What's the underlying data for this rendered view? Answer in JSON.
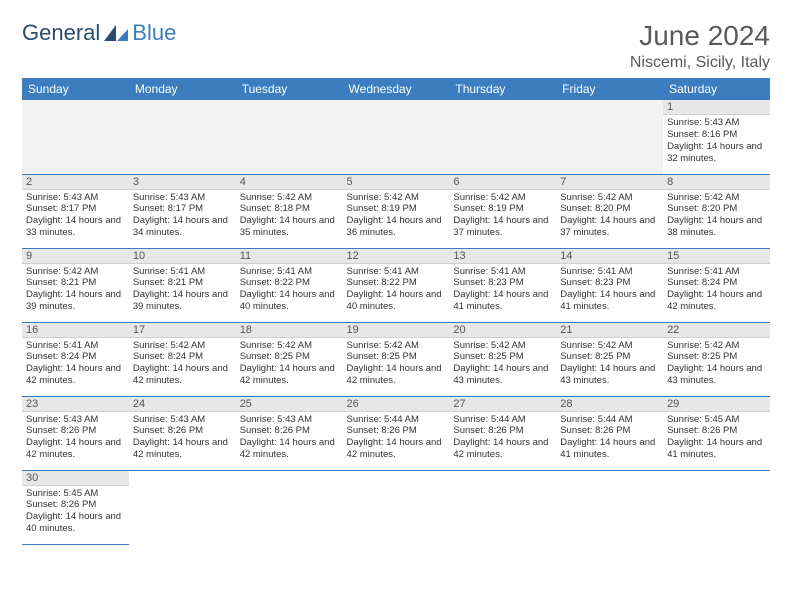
{
  "brand": {
    "word1": "General",
    "word2": "Blue"
  },
  "title": "June 2024",
  "location": "Niscemi, Sicily, Italy",
  "colors": {
    "header_bg": "#3b7dbf",
    "header_text": "#ffffff",
    "daynum_bg": "#e7e7e7",
    "cell_border": "#3b7dbf",
    "text": "#333333",
    "title_text": "#5a5a5a"
  },
  "weekdays": [
    "Sunday",
    "Monday",
    "Tuesday",
    "Wednesday",
    "Thursday",
    "Friday",
    "Saturday"
  ],
  "leading_blanks": 6,
  "days": [
    {
      "n": 1,
      "sunrise": "5:43 AM",
      "sunset": "8:16 PM",
      "daylight": "14 hours and 32 minutes."
    },
    {
      "n": 2,
      "sunrise": "5:43 AM",
      "sunset": "8:17 PM",
      "daylight": "14 hours and 33 minutes."
    },
    {
      "n": 3,
      "sunrise": "5:43 AM",
      "sunset": "8:17 PM",
      "daylight": "14 hours and 34 minutes."
    },
    {
      "n": 4,
      "sunrise": "5:42 AM",
      "sunset": "8:18 PM",
      "daylight": "14 hours and 35 minutes."
    },
    {
      "n": 5,
      "sunrise": "5:42 AM",
      "sunset": "8:19 PM",
      "daylight": "14 hours and 36 minutes."
    },
    {
      "n": 6,
      "sunrise": "5:42 AM",
      "sunset": "8:19 PM",
      "daylight": "14 hours and 37 minutes."
    },
    {
      "n": 7,
      "sunrise": "5:42 AM",
      "sunset": "8:20 PM",
      "daylight": "14 hours and 37 minutes."
    },
    {
      "n": 8,
      "sunrise": "5:42 AM",
      "sunset": "8:20 PM",
      "daylight": "14 hours and 38 minutes."
    },
    {
      "n": 9,
      "sunrise": "5:42 AM",
      "sunset": "8:21 PM",
      "daylight": "14 hours and 39 minutes."
    },
    {
      "n": 10,
      "sunrise": "5:41 AM",
      "sunset": "8:21 PM",
      "daylight": "14 hours and 39 minutes."
    },
    {
      "n": 11,
      "sunrise": "5:41 AM",
      "sunset": "8:22 PM",
      "daylight": "14 hours and 40 minutes."
    },
    {
      "n": 12,
      "sunrise": "5:41 AM",
      "sunset": "8:22 PM",
      "daylight": "14 hours and 40 minutes."
    },
    {
      "n": 13,
      "sunrise": "5:41 AM",
      "sunset": "8:23 PM",
      "daylight": "14 hours and 41 minutes."
    },
    {
      "n": 14,
      "sunrise": "5:41 AM",
      "sunset": "8:23 PM",
      "daylight": "14 hours and 41 minutes."
    },
    {
      "n": 15,
      "sunrise": "5:41 AM",
      "sunset": "8:24 PM",
      "daylight": "14 hours and 42 minutes."
    },
    {
      "n": 16,
      "sunrise": "5:41 AM",
      "sunset": "8:24 PM",
      "daylight": "14 hours and 42 minutes."
    },
    {
      "n": 17,
      "sunrise": "5:42 AM",
      "sunset": "8:24 PM",
      "daylight": "14 hours and 42 minutes."
    },
    {
      "n": 18,
      "sunrise": "5:42 AM",
      "sunset": "8:25 PM",
      "daylight": "14 hours and 42 minutes."
    },
    {
      "n": 19,
      "sunrise": "5:42 AM",
      "sunset": "8:25 PM",
      "daylight": "14 hours and 42 minutes."
    },
    {
      "n": 20,
      "sunrise": "5:42 AM",
      "sunset": "8:25 PM",
      "daylight": "14 hours and 43 minutes."
    },
    {
      "n": 21,
      "sunrise": "5:42 AM",
      "sunset": "8:25 PM",
      "daylight": "14 hours and 43 minutes."
    },
    {
      "n": 22,
      "sunrise": "5:42 AM",
      "sunset": "8:25 PM",
      "daylight": "14 hours and 43 minutes."
    },
    {
      "n": 23,
      "sunrise": "5:43 AM",
      "sunset": "8:26 PM",
      "daylight": "14 hours and 42 minutes."
    },
    {
      "n": 24,
      "sunrise": "5:43 AM",
      "sunset": "8:26 PM",
      "daylight": "14 hours and 42 minutes."
    },
    {
      "n": 25,
      "sunrise": "5:43 AM",
      "sunset": "8:26 PM",
      "daylight": "14 hours and 42 minutes."
    },
    {
      "n": 26,
      "sunrise": "5:44 AM",
      "sunset": "8:26 PM",
      "daylight": "14 hours and 42 minutes."
    },
    {
      "n": 27,
      "sunrise": "5:44 AM",
      "sunset": "8:26 PM",
      "daylight": "14 hours and 42 minutes."
    },
    {
      "n": 28,
      "sunrise": "5:44 AM",
      "sunset": "8:26 PM",
      "daylight": "14 hours and 41 minutes."
    },
    {
      "n": 29,
      "sunrise": "5:45 AM",
      "sunset": "8:26 PM",
      "daylight": "14 hours and 41 minutes."
    },
    {
      "n": 30,
      "sunrise": "5:45 AM",
      "sunset": "8:26 PM",
      "daylight": "14 hours and 40 minutes."
    }
  ],
  "labels": {
    "sunrise": "Sunrise:",
    "sunset": "Sunset:",
    "daylight": "Daylight:"
  }
}
